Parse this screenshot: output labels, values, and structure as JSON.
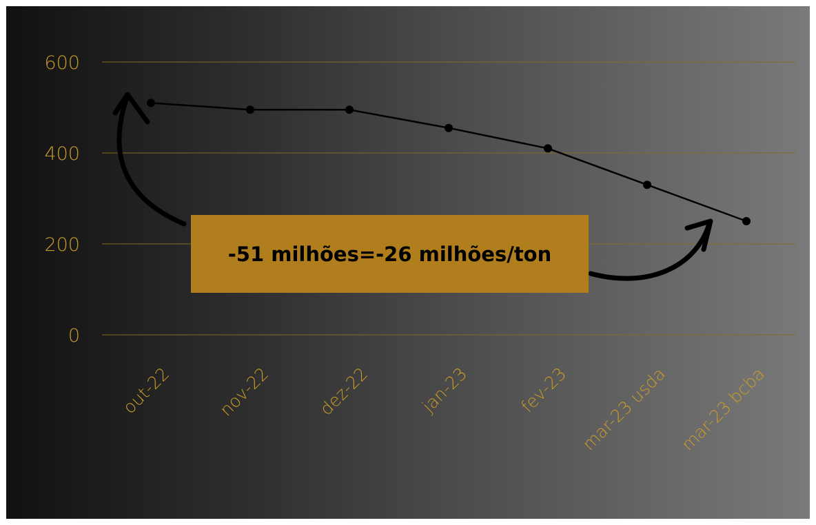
{
  "chart_data": {
    "type": "line",
    "categories": [
      "out-22",
      "nov-22",
      "dez-22",
      "jan-23",
      "fev-23",
      "mar-23 usda",
      "mar-23 bcba"
    ],
    "series": [
      {
        "values": [
          510,
          495,
          495,
          455,
          410,
          330,
          250
        ]
      }
    ],
    "yticks": [
      "0",
      "200",
      "400",
      "600"
    ],
    "ylim": [
      0,
      600
    ],
    "grid": true,
    "legend": "none",
    "annotation": "-51 milhões=-26 milhões/ton",
    "colors": {
      "tick_text": "#c89a2a",
      "gridline": "#8a6a1e",
      "line": "#000000",
      "annotation_bg": "#b07e1c",
      "annotation_text": "#000000"
    }
  }
}
